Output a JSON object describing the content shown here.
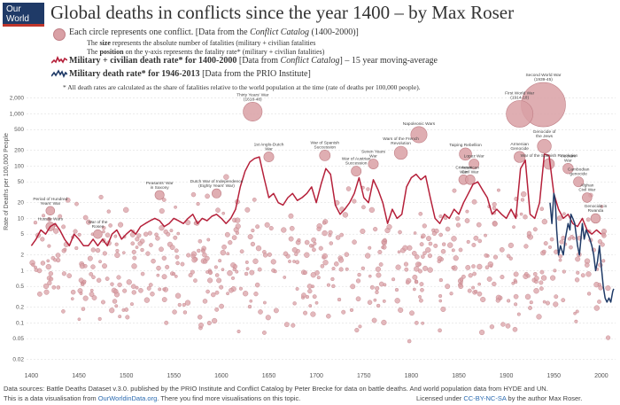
{
  "logo": {
    "line1": "Our World",
    "line2": "in Data"
  },
  "title": "Global deaths in conflicts since the year 1400 – by Max Roser",
  "legend": {
    "circle_line1_pre": "Each circle represents one conflict. [Data from the ",
    "circle_line1_src": "Conflict Catalog",
    "circle_line1_post": " (1400-2000)]",
    "size_pre": "The ",
    "size_bold": "size",
    "size_post": " represents the absolute number of fatalities (military + civilian fatalities",
    "position_pre": "The ",
    "position_bold": "position",
    "position_post": " on the y-axis represents the fatality rate* (military + civilian fatalities)",
    "red_bold": "Military + civilian death rate* for 1400-2000",
    "red_rest_pre": " [Data from ",
    "red_rest_src": "Conflict Catalog",
    "red_rest_post": "] – 15 year moving-average",
    "blue_bold": "Military death rate* for 1946-2013",
    "blue_rest": " [Data from the PRIO Institute]",
    "note": "* All death rates are calculated as the share of fatalities relative to the world population at the time (rate of deaths per 100,000 people)."
  },
  "colors": {
    "circle_fill": "#d9a0a5",
    "circle_stroke": "#c07f86",
    "red_line": "#b5203a",
    "blue_line": "#1f3a67",
    "grid": "#d8d8d8"
  },
  "chart_data": {
    "type": "scatter",
    "ylabel": "Rate of Deaths per 100,000 People",
    "y_scale": "log",
    "xlim": [
      1395,
      2015
    ],
    "ylim": [
      0.015,
      2500
    ],
    "x_ticks": [
      1400,
      1450,
      1500,
      1550,
      1600,
      1650,
      1700,
      1750,
      1800,
      1850,
      1900,
      1950,
      2000
    ],
    "y_ticks": [
      0.02,
      0.05,
      0.1,
      0.2,
      0.5,
      1,
      2,
      5,
      10,
      20,
      50,
      100,
      200,
      500,
      1000,
      2000
    ],
    "y_tick_labels": [
      "0.02",
      "0.05",
      "0.1",
      "0.2",
      "0.5",
      "1",
      "2",
      "5",
      "10",
      "20",
      "50",
      "100",
      "200",
      "500",
      "1,000",
      "2,000"
    ],
    "grid": "horizontal",
    "annotated_conflicts": [
      {
        "x": 1939,
        "y": 1500,
        "r": 1.0,
        "label": [
          "Second World War",
          "(1939-45)"
        ]
      },
      {
        "x": 1914,
        "y": 1000,
        "r": 0.55,
        "label": [
          "First World War",
          "(1914-18)"
        ]
      },
      {
        "x": 1633,
        "y": 1100,
        "r": 0.35,
        "label": [
          "Thirty Years' War",
          "(1618-48)"
        ]
      },
      {
        "x": 1808,
        "y": 400,
        "r": 0.28,
        "label": [
          "Napoleonic Wars"
        ]
      },
      {
        "x": 1940,
        "y": 240,
        "r": 0.22,
        "label": [
          "Genocide of",
          "the Jews"
        ]
      },
      {
        "x": 1789,
        "y": 180,
        "r": 0.2,
        "label": [
          "Wars of the French",
          "Revolution"
        ]
      },
      {
        "x": 1857,
        "y": 170,
        "r": 0.18,
        "label": [
          "Taiping Rebellion"
        ]
      },
      {
        "x": 1914,
        "y": 150,
        "r": 0.15,
        "label": [
          "Armenian",
          "Genocide"
        ]
      },
      {
        "x": 1945,
        "y": 110,
        "r": 0.14,
        "label": [
          "War of the Spanish Revolution"
        ]
      },
      {
        "x": 1709,
        "y": 160,
        "r": 0.14,
        "label": [
          "War of Spanish",
          "Succession"
        ]
      },
      {
        "x": 1760,
        "y": 110,
        "r": 0.12,
        "label": [
          "Seven Years",
          "War"
        ]
      },
      {
        "x": 1742,
        "y": 80,
        "r": 0.12,
        "label": [
          "War of Austrian",
          "Succession"
        ]
      },
      {
        "x": 1650,
        "y": 150,
        "r": 0.12,
        "label": [
          "1st Anglo-Dutch",
          "War"
        ]
      },
      {
        "x": 1866,
        "y": 110,
        "r": 0.12,
        "label": [
          "Lopez War"
        ]
      },
      {
        "x": 1855,
        "y": 55,
        "r": 0.11,
        "label": [
          "Crimean",
          "War"
        ]
      },
      {
        "x": 1862,
        "y": 55,
        "r": 0.11,
        "label": [
          "American",
          "Civil War"
        ]
      },
      {
        "x": 1965,
        "y": 90,
        "r": 0.13,
        "label": [
          "Vietnam",
          "War"
        ]
      },
      {
        "x": 1976,
        "y": 50,
        "r": 0.12,
        "label": [
          "Cambodian",
          "genocide"
        ]
      },
      {
        "x": 1985,
        "y": 25,
        "r": 0.11,
        "label": [
          "Afghan",
          "Civil War"
        ]
      },
      {
        "x": 1994,
        "y": 10,
        "r": 0.11,
        "label": [
          "Genocide in",
          "Rwanda"
        ]
      },
      {
        "x": 1535,
        "y": 28,
        "r": 0.1,
        "label": [
          "Peasants' War",
          "in Saxony"
        ]
      },
      {
        "x": 1595,
        "y": 30,
        "r": 0.1,
        "label": [
          "Dutch War of Independence",
          "(Eighty Years' War)"
        ]
      },
      {
        "x": 1420,
        "y": 14,
        "r": 0.09,
        "label": [
          "Period of Hundred",
          "Years' War"
        ]
      },
      {
        "x": 1420,
        "y": 7,
        "r": 0.09,
        "label": [
          "Hussite Wars"
        ]
      },
      {
        "x": 1470,
        "y": 5,
        "r": 0.09,
        "label": [
          "War of the",
          "Roses"
        ]
      }
    ],
    "series": [
      {
        "name": "Military + civilian death rate* for 1400-2000",
        "color": "#b5203a",
        "x": [
          1400,
          1405,
          1410,
          1415,
          1420,
          1425,
          1430,
          1435,
          1440,
          1445,
          1450,
          1455,
          1460,
          1465,
          1470,
          1475,
          1480,
          1485,
          1490,
          1495,
          1500,
          1505,
          1510,
          1515,
          1520,
          1525,
          1530,
          1535,
          1540,
          1545,
          1550,
          1555,
          1560,
          1565,
          1570,
          1575,
          1580,
          1585,
          1590,
          1595,
          1600,
          1605,
          1610,
          1615,
          1620,
          1625,
          1630,
          1635,
          1640,
          1645,
          1650,
          1655,
          1660,
          1665,
          1670,
          1675,
          1680,
          1685,
          1690,
          1695,
          1700,
          1705,
          1710,
          1715,
          1720,
          1725,
          1730,
          1735,
          1740,
          1745,
          1750,
          1755,
          1760,
          1765,
          1770,
          1775,
          1780,
          1785,
          1790,
          1795,
          1800,
          1805,
          1810,
          1815,
          1820,
          1825,
          1830,
          1835,
          1840,
          1845,
          1850,
          1855,
          1860,
          1865,
          1870,
          1875,
          1880,
          1885,
          1890,
          1895,
          1900,
          1905,
          1910,
          1915,
          1920,
          1925,
          1930,
          1935,
          1940,
          1945,
          1950,
          1955,
          1960,
          1965,
          1970,
          1975,
          1980,
          1985,
          1990,
          1995,
          2000
        ],
        "y": [
          3,
          4,
          6,
          5,
          7,
          8,
          6,
          4,
          3,
          5,
          4,
          3,
          3,
          4,
          3,
          4,
          3,
          5,
          6,
          4,
          5,
          6,
          5,
          7,
          8,
          9,
          10,
          9,
          7,
          8,
          10,
          9,
          8,
          10,
          12,
          8,
          10,
          9,
          11,
          12,
          10,
          8,
          10,
          15,
          40,
          80,
          120,
          140,
          150,
          60,
          25,
          30,
          20,
          18,
          25,
          30,
          22,
          25,
          30,
          40,
          20,
          45,
          90,
          70,
          18,
          12,
          15,
          20,
          30,
          60,
          25,
          20,
          55,
          35,
          20,
          8,
          15,
          10,
          12,
          40,
          60,
          70,
          55,
          65,
          25,
          10,
          8,
          12,
          10,
          15,
          12,
          20,
          30,
          45,
          50,
          35,
          25,
          12,
          15,
          12,
          10,
          15,
          10,
          90,
          130,
          12,
          10,
          20,
          170,
          160,
          30,
          15,
          10,
          12,
          8,
          7,
          10,
          6,
          5,
          6,
          5
        ]
      },
      {
        "name": "Military death rate* for 1946-2013",
        "color": "#1f3a67",
        "x": [
          1946,
          1948,
          1950,
          1951,
          1952,
          1953,
          1955,
          1957,
          1960,
          1962,
          1965,
          1967,
          1968,
          1970,
          1972,
          1975,
          1977,
          1980,
          1982,
          1984,
          1986,
          1988,
          1990,
          1992,
          1994,
          1996,
          1998,
          2000,
          2002,
          2004,
          2006,
          2008,
          2010,
          2012,
          2013
        ],
        "y": [
          20,
          8,
          30,
          25,
          15,
          6,
          2,
          3,
          2,
          4,
          8,
          6,
          12,
          10,
          8,
          3,
          2,
          8,
          4,
          6,
          5,
          4,
          3,
          2,
          1,
          1.5,
          3,
          1.2,
          0.5,
          0.3,
          0.25,
          0.3,
          0.25,
          0.4,
          0.45
        ]
      }
    ]
  },
  "footer": {
    "line1": "Data sources: Battle Deaths Dataset v.3.0. published by the PRIO Institute and Conflict Catalog by Peter Brecke for data on battle deaths. And world population data from HYDE and UN.",
    "line2_pre": "This is a data visualisation from ",
    "line2_link": "OurWorldinData.org",
    "line2_post": ". There you find more visualisations on this topic.",
    "license_pre": "Licensed under ",
    "license_link": "CC-BY-NC-SA",
    "license_post": " by the author Max Roser."
  }
}
